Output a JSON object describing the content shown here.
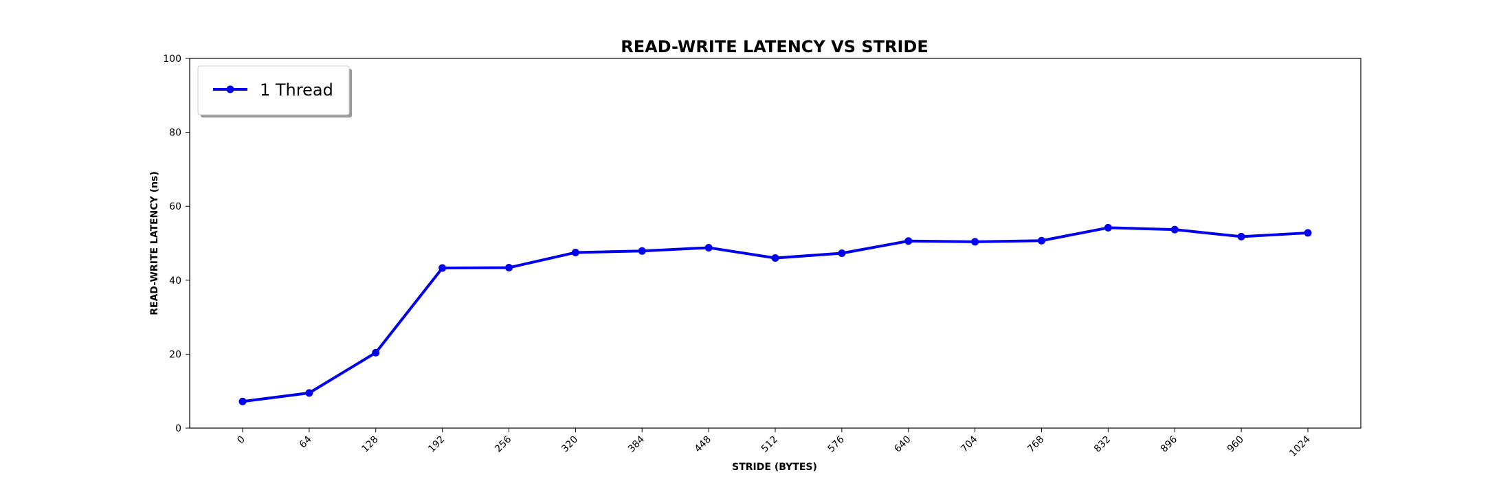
{
  "chart_data": {
    "type": "line",
    "title": "READ-WRITE LATENCY VS STRIDE",
    "xlabel": "STRIDE (BYTES)",
    "ylabel": "READ-WRITE LATENCY (ns)",
    "categories": [
      "0",
      "64",
      "128",
      "192",
      "256",
      "320",
      "384",
      "448",
      "512",
      "576",
      "640",
      "704",
      "768",
      "832",
      "896",
      "960",
      "1024"
    ],
    "ylim": [
      0,
      100
    ],
    "yticks": [
      0,
      20,
      40,
      60,
      80,
      100
    ],
    "grid": false,
    "legend_position": "top-left",
    "series": [
      {
        "name": "1 Thread",
        "color": "#0000ee",
        "marker": "circle",
        "values": [
          7.2,
          9.5,
          20.4,
          43.3,
          43.4,
          47.5,
          47.9,
          48.8,
          46.0,
          47.3,
          50.6,
          50.4,
          50.7,
          54.2,
          53.7,
          51.8,
          52.8
        ]
      }
    ]
  }
}
